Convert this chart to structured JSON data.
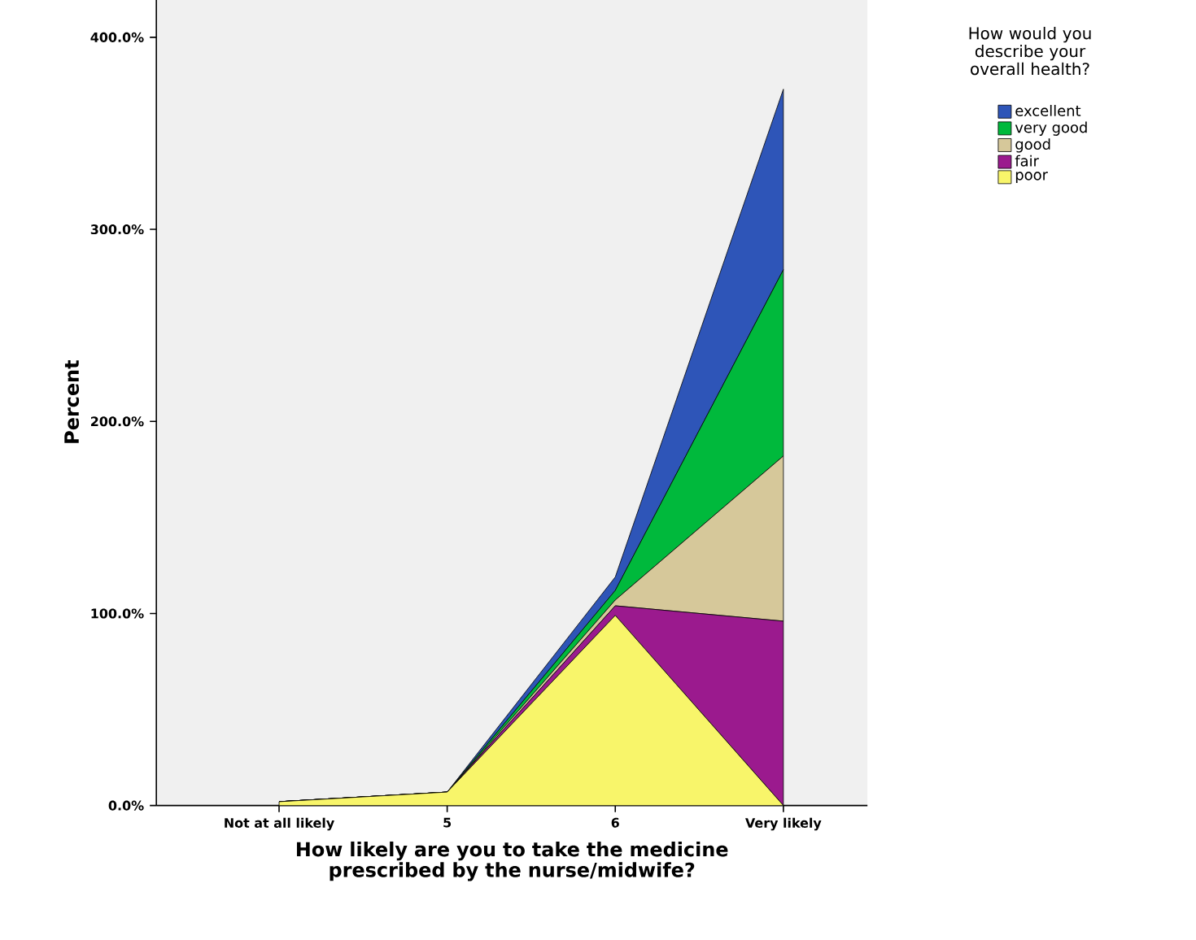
{
  "chart_data": {
    "type": "area",
    "stacked": true,
    "xlabel": "How likely are you to take the medicine prescribed by the nurse/midwife?",
    "ylabel": "Percent",
    "legend_title": "How would you describe your overall health?",
    "legend": "top right",
    "categories": [
      "Not at all likely",
      "5",
      "6",
      "Very likely"
    ],
    "ylim": [
      0,
      420
    ],
    "yticks": [
      {
        "value": 0,
        "label": "0.0%"
      },
      {
        "value": 100,
        "label": "100.0%"
      },
      {
        "value": 200,
        "label": "200.0%"
      },
      {
        "value": 300,
        "label": "300.0%"
      },
      {
        "value": 400,
        "label": "400.0%"
      }
    ],
    "series": [
      {
        "name": "poor",
        "color": "#f8f56a",
        "values": [
          2,
          7,
          99,
          0
        ]
      },
      {
        "name": "fair",
        "color": "#9b1a8e",
        "values": [
          0,
          0,
          5,
          96
        ]
      },
      {
        "name": "good",
        "color": "#d6c89a",
        "values": [
          0,
          0,
          3,
          86
        ]
      },
      {
        "name": "very good",
        "color": "#00b93c",
        "values": [
          0,
          0,
          5,
          97
        ]
      },
      {
        "name": "excellent",
        "color": "#2e55b8",
        "values": [
          0,
          0,
          7,
          94
        ]
      }
    ]
  }
}
